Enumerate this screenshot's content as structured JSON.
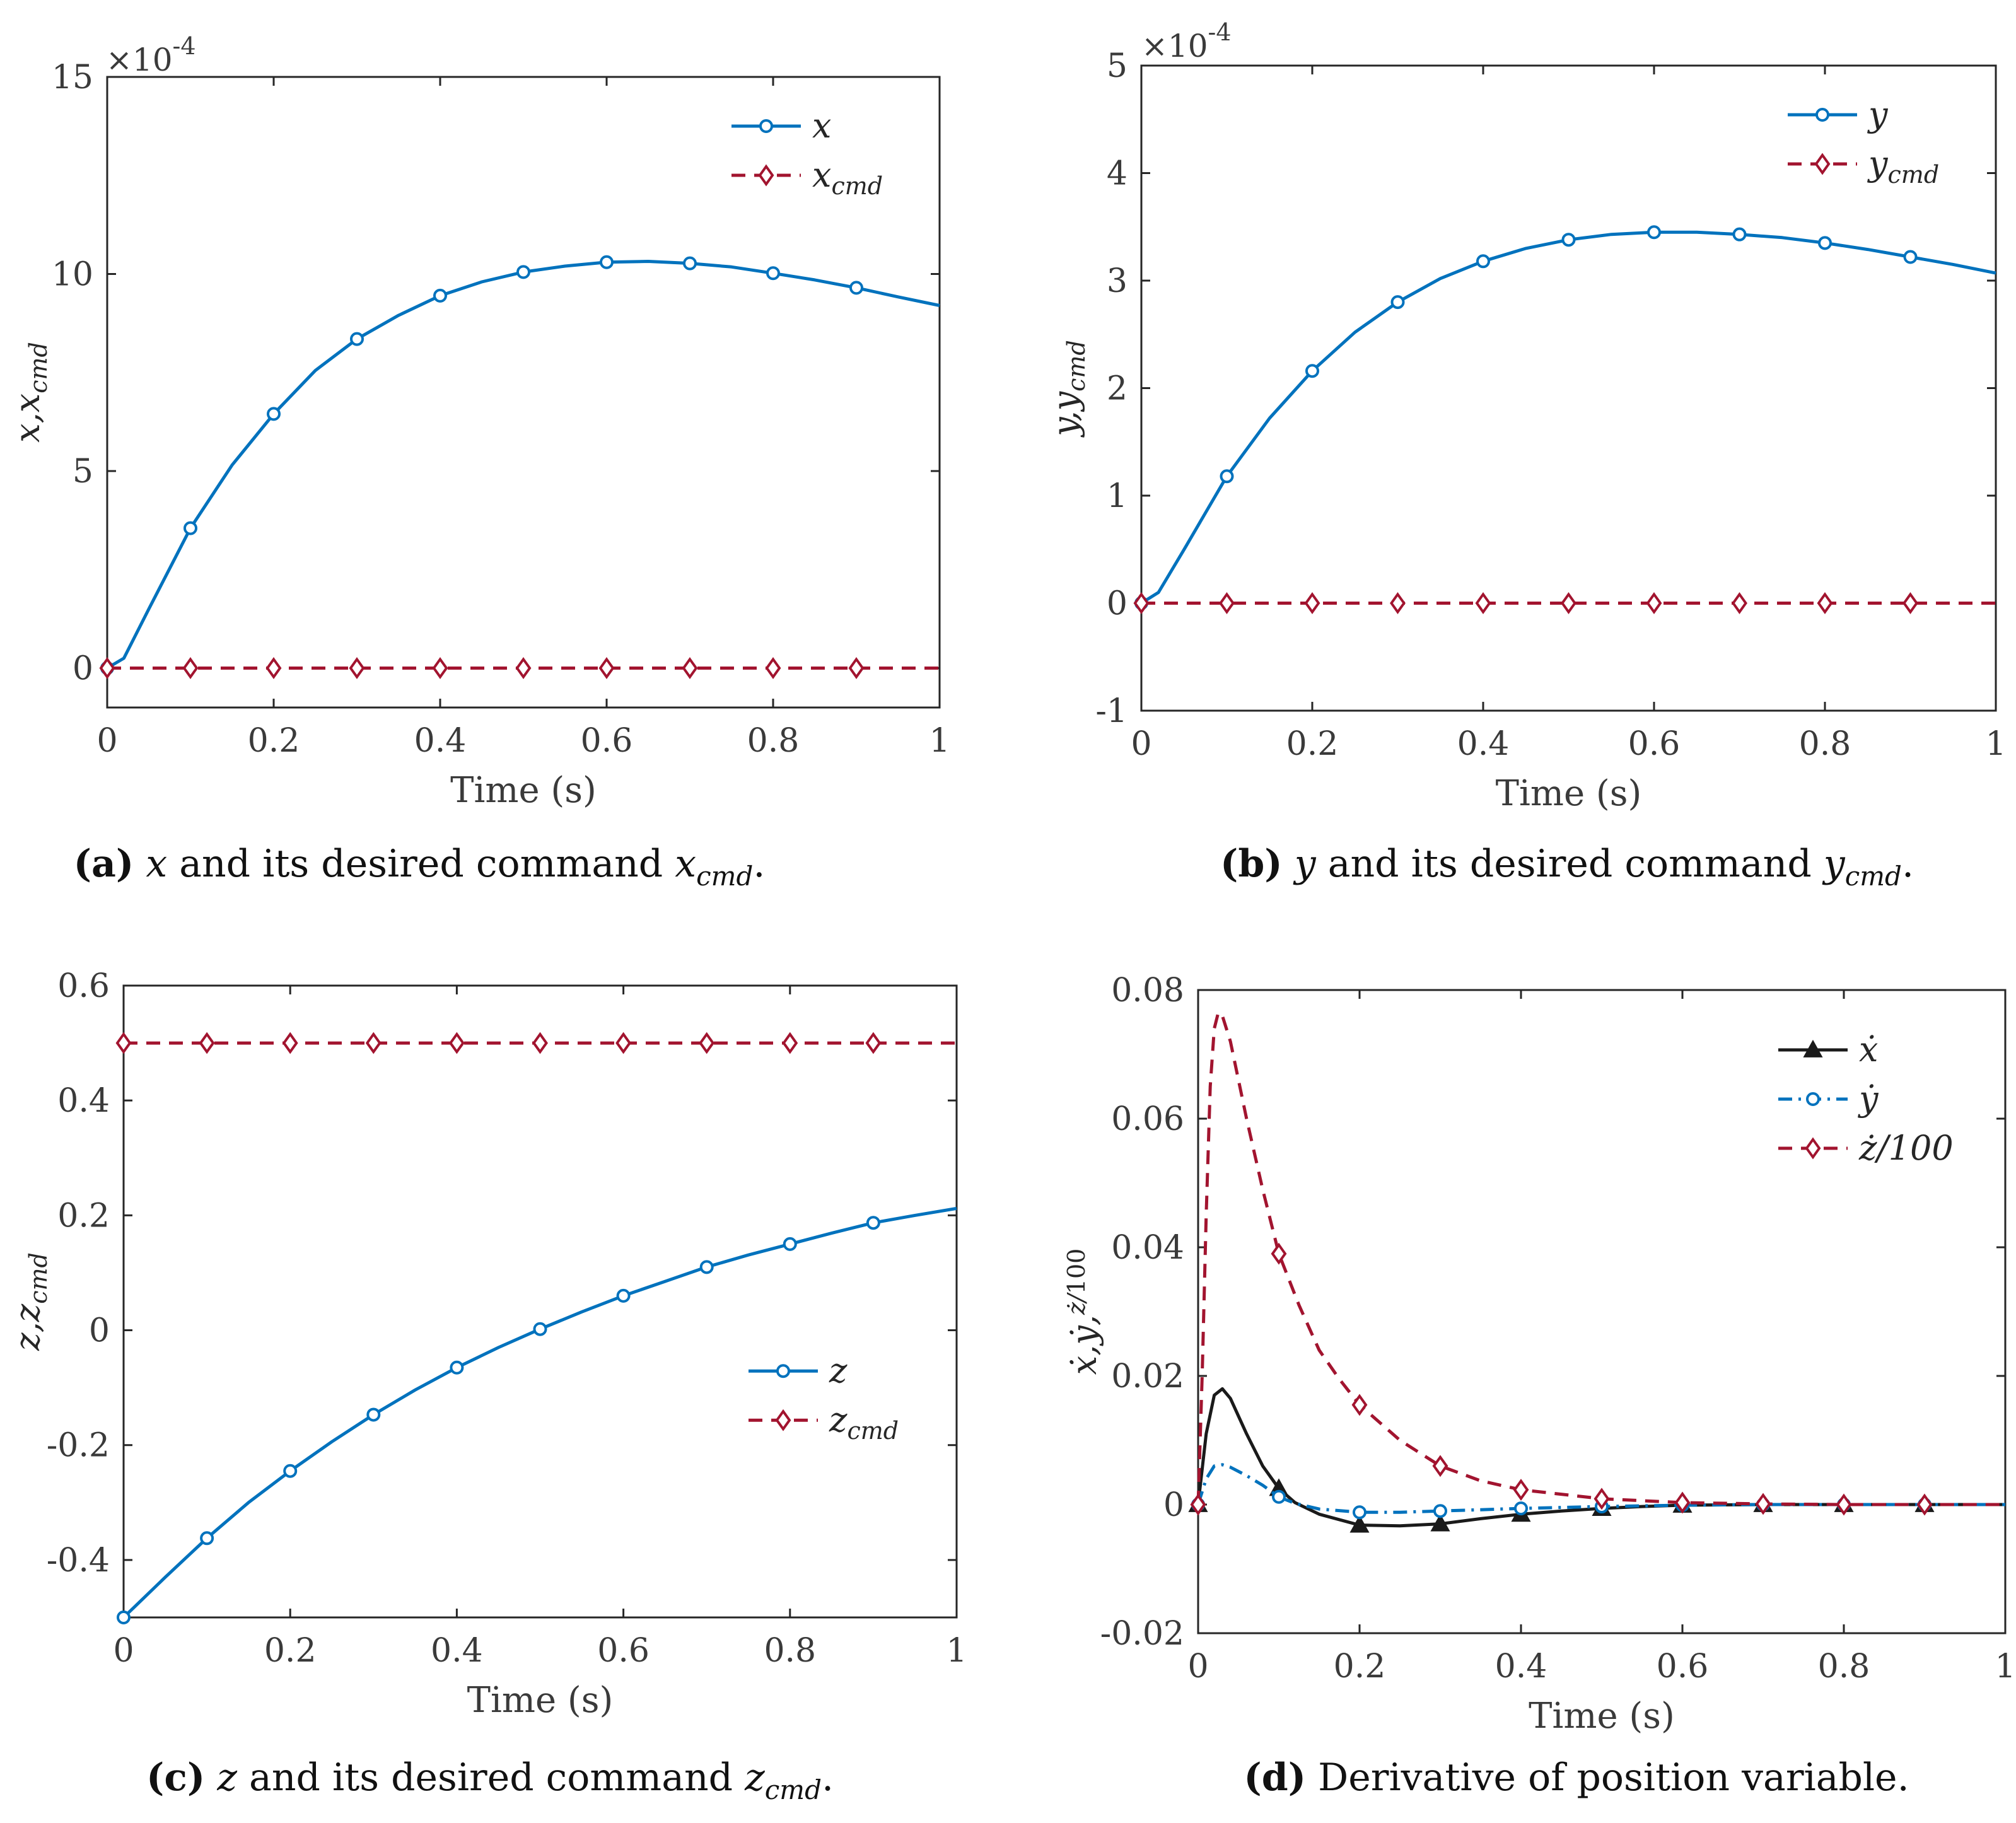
{
  "colors": {
    "blue": "#0072BD",
    "red": "#A2142F",
    "black": "#1a1a1a"
  },
  "chart_data": [
    {
      "id": "a",
      "type": "line",
      "xlabel": "Time (s)",
      "ylabel": "x,x_cmd",
      "ylabel_parts": {
        "main": "x,x",
        "sub": "cmd"
      },
      "exponent_label": "×10",
      "exponent_power": "-4",
      "xlim": [
        0,
        1
      ],
      "ylim": [
        -1,
        15
      ],
      "xticks": [
        0,
        0.2,
        0.4,
        0.6,
        0.8,
        1
      ],
      "xtick_labels": [
        "0",
        "0.2",
        "0.4",
        "0.6",
        "0.8",
        "1"
      ],
      "yticks": [
        0,
        5,
        10,
        15
      ],
      "ytick_labels": [
        "0",
        "5",
        "10",
        "15"
      ],
      "legend_position": "top-right",
      "caption": {
        "letter": "(a)",
        "mid": " and its desired command ",
        "var": "x",
        "var2": "x",
        "sub": "cmd"
      },
      "series": [
        {
          "name": "x",
          "name_main": "x",
          "name_sub": "",
          "color_key": "blue",
          "dash": "solid",
          "marker": "circle",
          "x": [
            0,
            0.02,
            0.05,
            0.1,
            0.15,
            0.2,
            0.25,
            0.3,
            0.35,
            0.4,
            0.45,
            0.5,
            0.55,
            0.6,
            0.65,
            0.7,
            0.75,
            0.8,
            0.85,
            0.9,
            0.95,
            1.0
          ],
          "y": [
            0,
            0.25,
            1.5,
            3.55,
            5.15,
            6.45,
            7.55,
            8.35,
            8.95,
            9.45,
            9.8,
            10.05,
            10.2,
            10.3,
            10.32,
            10.27,
            10.18,
            10.02,
            9.85,
            9.65,
            9.42,
            9.2
          ],
          "marker_x": [
            0,
            0.1,
            0.2,
            0.3,
            0.4,
            0.5,
            0.6,
            0.7,
            0.8,
            0.9
          ]
        },
        {
          "name": "x_cmd",
          "name_main": "x",
          "name_sub": "cmd",
          "color_key": "red",
          "dash": "dashed",
          "marker": "diamond",
          "x": [
            0,
            1
          ],
          "y": [
            0,
            0
          ],
          "marker_x": [
            0,
            0.1,
            0.2,
            0.3,
            0.4,
            0.5,
            0.6,
            0.7,
            0.8,
            0.9
          ]
        }
      ]
    },
    {
      "id": "b",
      "type": "line",
      "xlabel": "Time (s)",
      "ylabel": "y,y_cmd",
      "ylabel_parts": {
        "main": "y,y",
        "sub": "cmd"
      },
      "exponent_label": "×10",
      "exponent_power": "-4",
      "xlim": [
        0,
        1
      ],
      "ylim": [
        -1,
        5
      ],
      "xticks": [
        0,
        0.2,
        0.4,
        0.6,
        0.8,
        1
      ],
      "xtick_labels": [
        "0",
        "0.2",
        "0.4",
        "0.6",
        "0.8",
        "1"
      ],
      "yticks": [
        -1,
        0,
        1,
        2,
        3,
        4,
        5
      ],
      "ytick_labels": [
        "-1",
        "0",
        "1",
        "2",
        "3",
        "4",
        "5"
      ],
      "legend_position": "top-right",
      "caption": {
        "letter": "(b)",
        "mid": " and its desired command ",
        "var": "y",
        "var2": "y",
        "sub": "cmd"
      },
      "series": [
        {
          "name": "y",
          "name_main": "y",
          "name_sub": "",
          "color_key": "blue",
          "dash": "solid",
          "marker": "circle",
          "x": [
            0,
            0.02,
            0.05,
            0.1,
            0.15,
            0.2,
            0.25,
            0.3,
            0.35,
            0.4,
            0.45,
            0.5,
            0.55,
            0.6,
            0.65,
            0.7,
            0.75,
            0.8,
            0.85,
            0.9,
            0.95,
            1.0
          ],
          "y": [
            0,
            0.1,
            0.5,
            1.18,
            1.72,
            2.16,
            2.52,
            2.8,
            3.02,
            3.18,
            3.3,
            3.38,
            3.43,
            3.45,
            3.45,
            3.43,
            3.4,
            3.35,
            3.29,
            3.22,
            3.15,
            3.07
          ],
          "marker_x": [
            0,
            0.1,
            0.2,
            0.3,
            0.4,
            0.5,
            0.6,
            0.7,
            0.8,
            0.9
          ]
        },
        {
          "name": "y_cmd",
          "name_main": "y",
          "name_sub": "cmd",
          "color_key": "red",
          "dash": "dashed",
          "marker": "diamond",
          "x": [
            0,
            1
          ],
          "y": [
            0,
            0
          ],
          "marker_x": [
            0,
            0.1,
            0.2,
            0.3,
            0.4,
            0.5,
            0.6,
            0.7,
            0.8,
            0.9
          ]
        }
      ]
    },
    {
      "id": "c",
      "type": "line",
      "xlabel": "Time (s)",
      "ylabel": "z,z_cmd",
      "ylabel_parts": {
        "main": "z,z",
        "sub": "cmd"
      },
      "xlim": [
        0,
        1
      ],
      "ylim": [
        -0.5,
        0.6
      ],
      "xticks": [
        0,
        0.2,
        0.4,
        0.6,
        0.8,
        1
      ],
      "xtick_labels": [
        "0",
        "0.2",
        "0.4",
        "0.6",
        "0.8",
        "1"
      ],
      "yticks": [
        -0.4,
        -0.2,
        0,
        0.2,
        0.4,
        0.6
      ],
      "ytick_labels": [
        "-0.4",
        "-0.2",
        "0",
        "0.2",
        "0.4",
        "0.6"
      ],
      "legend_position": "center-right",
      "caption": {
        "letter": "(c)",
        "mid": " and its desired command ",
        "var": "z",
        "var2": "z",
        "sub": "cmd"
      },
      "series": [
        {
          "name": "z",
          "name_main": "z",
          "name_sub": "",
          "color_key": "blue",
          "dash": "solid",
          "marker": "circle",
          "x": [
            0,
            0.05,
            0.1,
            0.15,
            0.2,
            0.25,
            0.3,
            0.35,
            0.4,
            0.45,
            0.5,
            0.55,
            0.6,
            0.65,
            0.7,
            0.75,
            0.8,
            0.85,
            0.9,
            0.95,
            1.0
          ],
          "y": [
            -0.5,
            -0.43,
            -0.362,
            -0.3,
            -0.245,
            -0.194,
            -0.147,
            -0.104,
            -0.065,
            -0.03,
            0.002,
            0.032,
            0.06,
            0.085,
            0.11,
            0.131,
            0.15,
            0.169,
            0.187,
            0.2,
            0.212
          ],
          "marker_x": [
            0,
            0.1,
            0.2,
            0.3,
            0.4,
            0.5,
            0.6,
            0.7,
            0.8,
            0.9
          ]
        },
        {
          "name": "z_cmd",
          "name_main": "z",
          "name_sub": "cmd",
          "color_key": "red",
          "dash": "dashed",
          "marker": "diamond",
          "x": [
            0,
            1
          ],
          "y": [
            0.5,
            0.5
          ],
          "marker_x": [
            0,
            0.1,
            0.2,
            0.3,
            0.4,
            0.5,
            0.6,
            0.7,
            0.8,
            0.9
          ]
        }
      ]
    },
    {
      "id": "d",
      "type": "line",
      "xlabel": "Time (s)",
      "ylabel": "ẋ,ẏ,ż/100",
      "ylabel_parts": {
        "main": "ẋ,ẏ,",
        "num": "ż",
        "den": "100"
      },
      "xlim": [
        0,
        1
      ],
      "ylim": [
        -0.02,
        0.08
      ],
      "xticks": [
        0,
        0.2,
        0.4,
        0.6,
        0.8,
        1
      ],
      "xtick_labels": [
        "0",
        "0.2",
        "0.4",
        "0.6",
        "0.8",
        "1"
      ],
      "yticks": [
        -0.02,
        0,
        0.02,
        0.04,
        0.06,
        0.08
      ],
      "ytick_labels": [
        "-0.02",
        "0",
        "0.02",
        "0.04",
        "0.06",
        "0.08"
      ],
      "legend_position": "top-right",
      "caption": {
        "letter": "(d)",
        "text": " Derivative of position variable."
      },
      "series": [
        {
          "name": "ẋ",
          "name_main": "ẋ",
          "name_sub": "",
          "color_key": "black",
          "dash": "solid",
          "marker": "triangle",
          "x": [
            0,
            0.01,
            0.02,
            0.03,
            0.04,
            0.06,
            0.08,
            0.1,
            0.12,
            0.15,
            0.2,
            0.25,
            0.3,
            0.35,
            0.4,
            0.45,
            0.5,
            0.55,
            0.6,
            0.7,
            0.8,
            0.9,
            1.0
          ],
          "y": [
            0,
            0.011,
            0.017,
            0.018,
            0.0165,
            0.011,
            0.006,
            0.0025,
            0.0003,
            -0.0015,
            -0.0032,
            -0.0033,
            -0.003,
            -0.0022,
            -0.0015,
            -0.001,
            -0.0006,
            -0.0003,
            -0.0001,
            0,
            0,
            0,
            0
          ],
          "marker_x": [
            0,
            0.1,
            0.2,
            0.3,
            0.4,
            0.5,
            0.6,
            0.7,
            0.8,
            0.9
          ]
        },
        {
          "name": "ẏ",
          "name_main": "ẏ",
          "name_sub": "",
          "color_key": "blue",
          "dash": "dashdot",
          "marker": "circle",
          "x": [
            0,
            0.01,
            0.02,
            0.03,
            0.04,
            0.06,
            0.08,
            0.1,
            0.12,
            0.15,
            0.2,
            0.25,
            0.3,
            0.35,
            0.4,
            0.5,
            0.6,
            0.7,
            0.8,
            0.9,
            1.0
          ],
          "y": [
            0,
            0.004,
            0.006,
            0.0062,
            0.0058,
            0.0045,
            0.003,
            0.0012,
            0.0002,
            -0.0007,
            -0.0012,
            -0.0012,
            -0.001,
            -0.0008,
            -0.0006,
            -0.0003,
            -0.0001,
            0,
            0,
            0,
            0
          ],
          "marker_x": [
            0,
            0.1,
            0.2,
            0.3,
            0.4,
            0.5,
            0.6,
            0.7,
            0.8,
            0.9
          ]
        },
        {
          "name": "ż/100",
          "name_main": "ż/100",
          "name_sub": "",
          "color_key": "red",
          "dash": "dashed",
          "marker": "diamond",
          "x": [
            0,
            0.005,
            0.01,
            0.015,
            0.02,
            0.025,
            0.03,
            0.04,
            0.05,
            0.06,
            0.08,
            0.1,
            0.125,
            0.15,
            0.175,
            0.2,
            0.25,
            0.3,
            0.35,
            0.4,
            0.5,
            0.6,
            0.7,
            0.8,
            0.9,
            1.0
          ],
          "y": [
            0,
            0.02,
            0.045,
            0.065,
            0.074,
            0.0765,
            0.076,
            0.072,
            0.066,
            0.06,
            0.049,
            0.039,
            0.031,
            0.024,
            0.0195,
            0.0155,
            0.01,
            0.006,
            0.0037,
            0.0023,
            0.0009,
            0.0003,
            0.0001,
            0,
            0,
            0
          ],
          "marker_x": [
            0,
            0.1,
            0.2,
            0.3,
            0.4,
            0.5,
            0.6,
            0.7,
            0.8,
            0.9
          ]
        }
      ]
    }
  ]
}
